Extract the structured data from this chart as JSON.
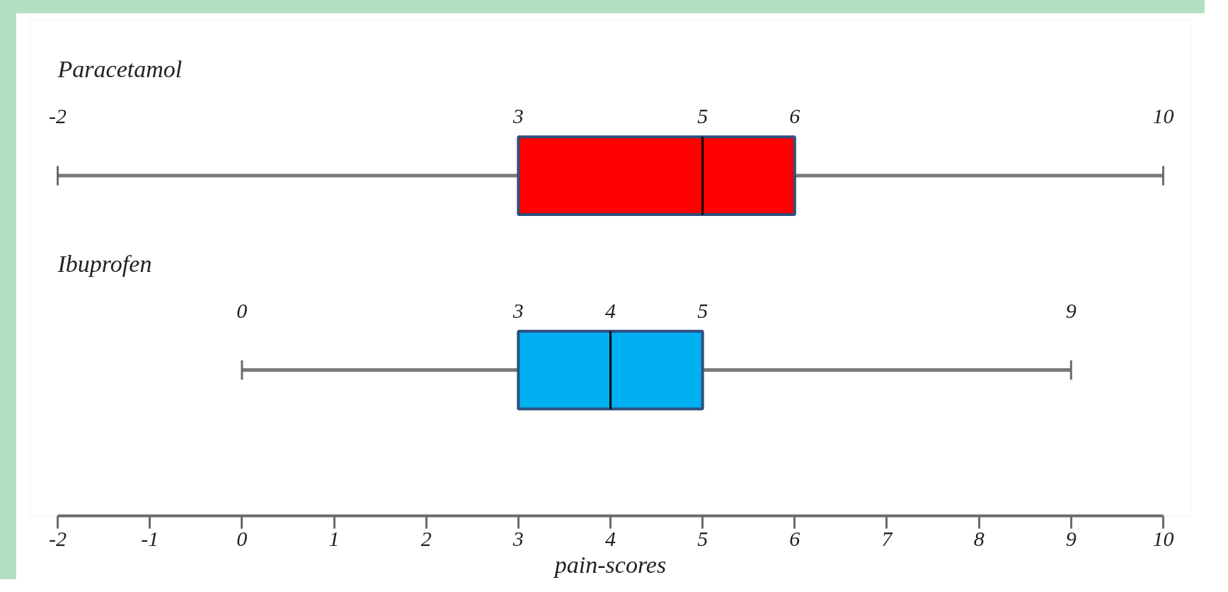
{
  "chart_data": {
    "type": "box",
    "orientation": "horizontal",
    "xlabel": "pain-scores",
    "categories": [
      "Paracetamol",
      "Ibuprofen"
    ],
    "boxes": [
      {
        "low": -2,
        "q1": 3,
        "median": 5,
        "q3": 6,
        "high": 10
      },
      {
        "low": 0,
        "q1": 3,
        "median": 4,
        "q3": 5,
        "high": 9
      }
    ],
    "colors": [
      "#ff0000",
      "#00b0f0"
    ],
    "xlim": [
      -2,
      10
    ],
    "xticks": [
      -2,
      -1,
      0,
      1,
      2,
      3,
      4,
      5,
      6,
      7,
      8,
      9,
      10
    ],
    "annotations": [
      "-2",
      {
        "text": "3",
        "x": 3,
        "y": "Paracetamol"
      },
      {
        "text": "5",
        "x": 5,
        "y": "Paracetamol"
      },
      {
        "text": "6",
        "x": 6,
        "y": "Paracetamol"
      },
      "10",
      "0",
      {
        "text": "3",
        "x": 3,
        "y": "Ibuprofen"
      },
      {
        "text": "4",
        "x": 4,
        "y": "Ibuprofen"
      },
      {
        "text": "5",
        "x": 5,
        "y": "Ibuprofen"
      },
      "9"
    ],
    "grid": false,
    "tick_labels": "x"
  }
}
